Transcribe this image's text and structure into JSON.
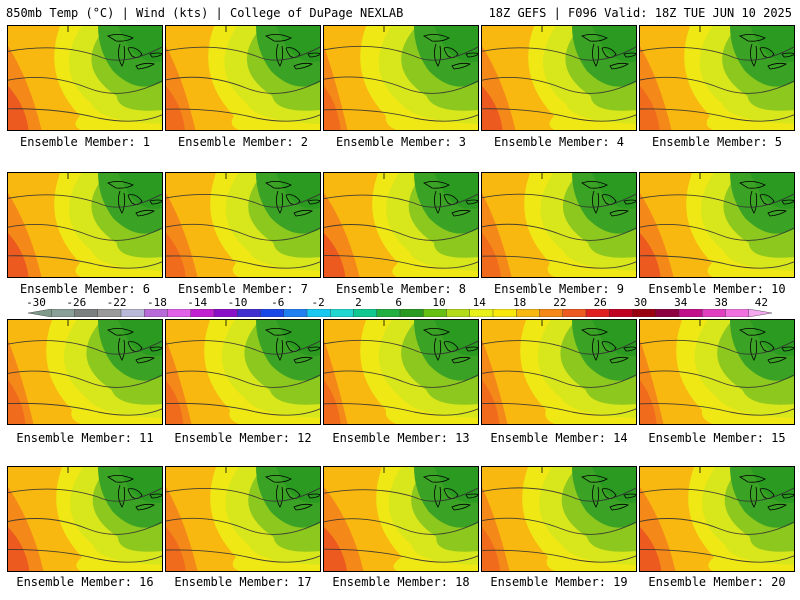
{
  "header": {
    "left": "850mb Temp (°C) | Wind (kts) | College of DuPage NEXLAB",
    "right": "18Z GEFS | F096 Valid: 18Z TUE JUN 10 2025"
  },
  "panels": [
    {
      "label": "Ensemble Member: 1",
      "warm": 0.55
    },
    {
      "label": "Ensemble Member: 2",
      "warm": 0.45
    },
    {
      "label": "Ensemble Member: 3",
      "warm": 0.3
    },
    {
      "label": "Ensemble Member: 4",
      "warm": 0.55
    },
    {
      "label": "Ensemble Member: 5",
      "warm": 0.5
    },
    {
      "label": "Ensemble Member: 6",
      "warm": 0.55
    },
    {
      "label": "Ensemble Member: 7",
      "warm": 0.5
    },
    {
      "label": "Ensemble Member: 8",
      "warm": 0.6
    },
    {
      "label": "Ensemble Member: 9",
      "warm": 0.45
    },
    {
      "label": "Ensemble Member: 10",
      "warm": 0.55
    },
    {
      "label": "Ensemble Member: 11",
      "warm": 0.35
    },
    {
      "label": "Ensemble Member: 12",
      "warm": 0.35
    },
    {
      "label": "Ensemble Member: 13",
      "warm": 0.3
    },
    {
      "label": "Ensemble Member: 14",
      "warm": 0.35
    },
    {
      "label": "Ensemble Member: 15",
      "warm": 0.3
    },
    {
      "label": "Ensemble Member: 16",
      "warm": 0.6
    },
    {
      "label": "Ensemble Member: 17",
      "warm": 0.5
    },
    {
      "label": "Ensemble Member: 18",
      "warm": 0.7
    },
    {
      "label": "Ensemble Member: 19",
      "warm": 0.4
    },
    {
      "label": "Ensemble Member: 20",
      "warm": 0.6
    }
  ],
  "colorbar": {
    "ticks": [
      "-30",
      "-26",
      "-22",
      "-18",
      "-14",
      "-10",
      "-6",
      "-2",
      "2",
      "6",
      "10",
      "14",
      "18",
      "22",
      "26",
      "30",
      "34",
      "38",
      "42"
    ],
    "colors": [
      "#7f9a8a",
      "#8a9f97",
      "#7a7f80",
      "#9a9a9a",
      "#b8b8d8",
      "#b86ad8",
      "#e060e8",
      "#c020d0",
      "#8a10c8",
      "#4030d0",
      "#1a48e8",
      "#2080f0",
      "#18c8f0",
      "#20d8d0",
      "#10c890",
      "#22b040",
      "#2a9a20",
      "#66c014",
      "#b2dc1a",
      "#e8f01c",
      "#f8e80c",
      "#f8b810",
      "#f48818",
      "#ec5a20",
      "#e02020",
      "#c00020",
      "#980012",
      "#8c0040",
      "#c0108a",
      "#e040c0",
      "#f070e0",
      "#f4a8f0"
    ]
  }
}
